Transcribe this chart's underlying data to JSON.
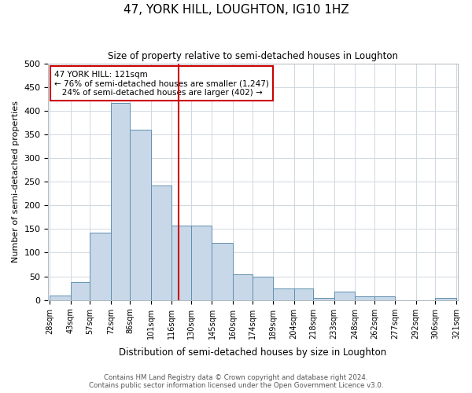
{
  "title": "47, YORK HILL, LOUGHTON, IG10 1HZ",
  "subtitle": "Size of property relative to semi-detached houses in Loughton",
  "xlabel": "Distribution of semi-detached houses by size in Loughton",
  "ylabel": "Number of semi-detached properties",
  "bin_labels": [
    "28sqm",
    "43sqm",
    "57sqm",
    "72sqm",
    "86sqm",
    "101sqm",
    "116sqm",
    "130sqm",
    "145sqm",
    "160sqm",
    "174sqm",
    "189sqm",
    "204sqm",
    "218sqm",
    "233sqm",
    "248sqm",
    "262sqm",
    "277sqm",
    "292sqm",
    "306sqm",
    "321sqm"
  ],
  "bin_edges": [
    28,
    43,
    57,
    72,
    86,
    101,
    116,
    130,
    145,
    160,
    174,
    189,
    204,
    218,
    233,
    248,
    262,
    277,
    292,
    306,
    321
  ],
  "bar_heights": [
    10,
    37,
    143,
    416,
    360,
    242,
    158,
    158,
    120,
    55,
    50,
    25,
    25,
    5,
    18,
    7,
    7,
    0,
    0,
    5
  ],
  "bar_color": "#c8d8e8",
  "bar_edge_color": "#6090b0",
  "vline_color": "#cc0000",
  "vline_x": 121,
  "annotation_line1": "47 YORK HILL: 121sqm",
  "annotation_line2": "← 76% of semi-detached houses are smaller (1,247)",
  "annotation_line3": "   24% of semi-detached houses are larger (402) →",
  "annotation_box_color": "#ffffff",
  "annotation_box_edge": "#cc0000",
  "ylim": [
    0,
    500
  ],
  "yticks": [
    0,
    50,
    100,
    150,
    200,
    250,
    300,
    350,
    400,
    450,
    500
  ],
  "footer_line1": "Contains HM Land Registry data © Crown copyright and database right 2024.",
  "footer_line2": "Contains public sector information licensed under the Open Government Licence v3.0.",
  "background_color": "#ffffff",
  "grid_color": "#d0d8e0"
}
